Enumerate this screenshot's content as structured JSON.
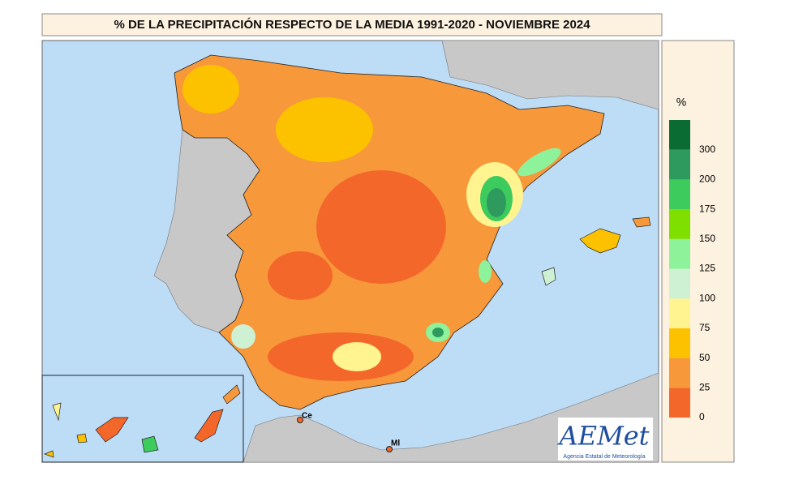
{
  "title": "% DE LA PRECIPITACIÓN RESPECTO DE LA MEDIA 1991-2020 - NOVIEMBRE 2024",
  "legend": {
    "unit": "%",
    "ticks": [
      0,
      25,
      50,
      75,
      100,
      125,
      150,
      175,
      200,
      300
    ],
    "colors": [
      "#f4672a",
      "#f7983a",
      "#fcc200",
      "#fff48f",
      "#cdf1d2",
      "#8ef29b",
      "#7fe000",
      "#3dcb5d",
      "#2e9a5e",
      "#0a6b33"
    ]
  },
  "places": [
    {
      "label": "Ce"
    },
    {
      "label": "Ml"
    }
  ],
  "logo": {
    "text": "AEMet",
    "subtitle": "Agencia Estatal de Meteorología"
  }
}
